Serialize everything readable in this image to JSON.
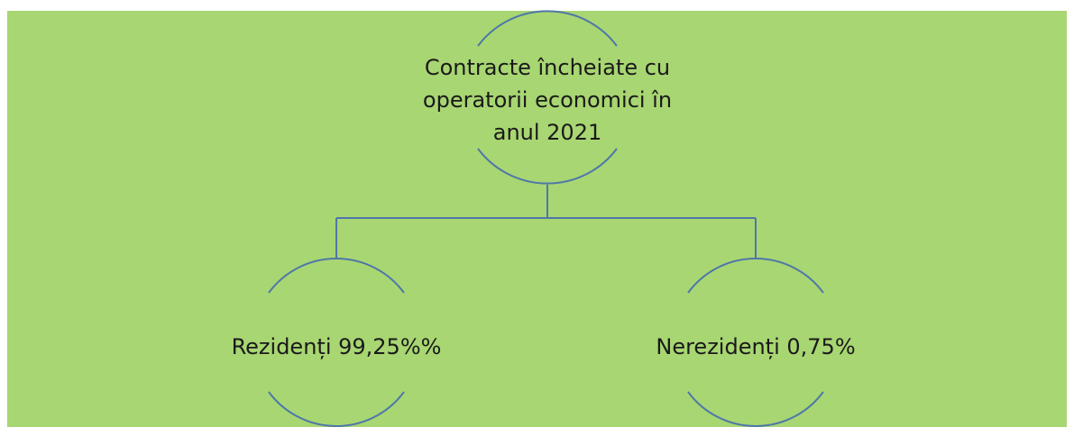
{
  "root": {
    "lines": [
      "Contracte încheiate cu",
      "operatorii economici în",
      "anul 2021"
    ]
  },
  "children": [
    {
      "label": "Rezidenți 99,25%%"
    },
    {
      "label": "Nerezidenți 0,75%"
    }
  ]
}
